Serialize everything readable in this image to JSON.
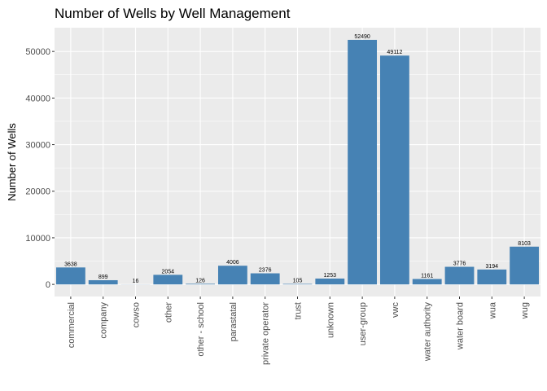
{
  "chart_data": {
    "type": "bar",
    "title": "Number of Wells by Well Management",
    "xlabel": "",
    "ylabel": "Number of Wells",
    "categories": [
      "commercial",
      "company",
      "cowso",
      "other",
      "other - school",
      "parastatal",
      "private operator",
      "trust",
      "unknown",
      "user-group",
      "vwc",
      "water authority",
      "water board",
      "wua",
      "wug"
    ],
    "values": [
      3638,
      899,
      16,
      2054,
      126,
      4006,
      2376,
      105,
      1253,
      52490,
      49112,
      1161,
      3776,
      3194,
      8103
    ],
    "value_labels": [
      "3638",
      "899",
      "16",
      "2054",
      "126",
      "4006",
      "2376",
      "105",
      "1253",
      "52490",
      "49112",
      "1161",
      "3776",
      "3194",
      "8103"
    ],
    "ylim": [
      -2600,
      55100
    ],
    "yticks": [
      0,
      10000,
      20000,
      30000,
      40000,
      50000
    ],
    "ytick_labels": [
      "0",
      "10000",
      "20000",
      "30000",
      "40000",
      "50000"
    ],
    "grid": true,
    "bar_color": "#4682B4",
    "panel_color": "#EBEBEB",
    "grid_color": "#FFFFFF"
  }
}
